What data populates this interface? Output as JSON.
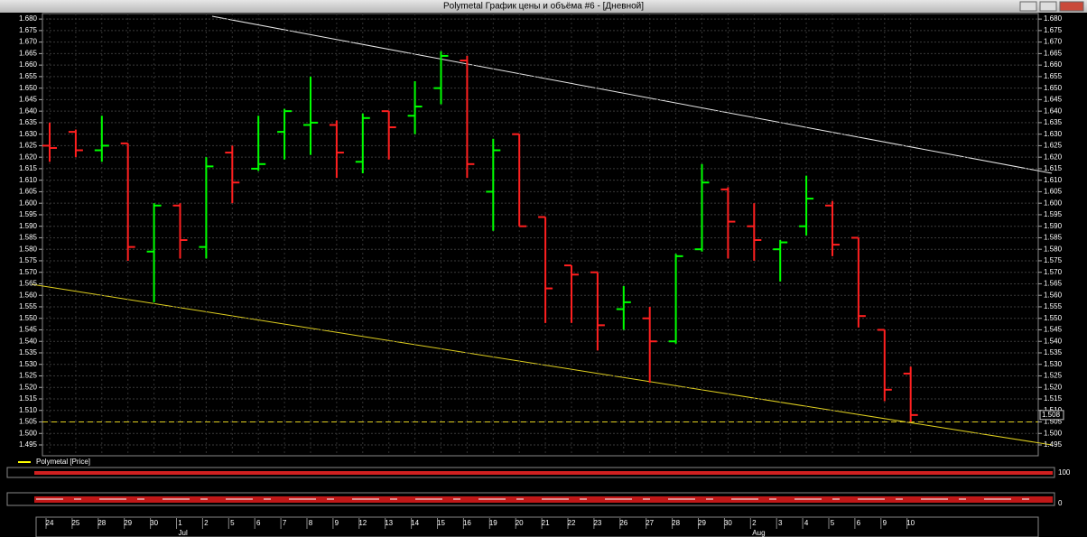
{
  "chart_data": {
    "type": "ohlc",
    "title": "Polymetal График цены и объёма #6 - [Дневной]",
    "legend": "Polymetal [Price]",
    "categories": [
      "24",
      "25",
      "28",
      "29",
      "30",
      "1",
      "2",
      "5",
      "6",
      "7",
      "8",
      "9",
      "12",
      "13",
      "14",
      "15",
      "16",
      "19",
      "20",
      "21",
      "22",
      "23",
      "26",
      "27",
      "28",
      "29",
      "30",
      "2",
      "3",
      "4",
      "5",
      "6",
      "9",
      "10"
    ],
    "month_categories": [
      null,
      null,
      null,
      null,
      null,
      "Jul",
      null,
      null,
      null,
      null,
      null,
      null,
      null,
      null,
      null,
      null,
      null,
      null,
      null,
      null,
      null,
      null,
      null,
      null,
      null,
      null,
      null,
      "Aug",
      null,
      null,
      null,
      null,
      null,
      null
    ],
    "open": [
      1.625,
      1.631,
      1.623,
      1.626,
      1.579,
      1.599,
      1.581,
      1.622,
      1.615,
      1.631,
      1.634,
      1.634,
      1.618,
      1.64,
      1.638,
      1.65,
      1.662,
      1.605,
      1.63,
      1.594,
      1.573,
      1.57,
      1.554,
      1.55,
      1.54,
      1.58,
      1.606,
      1.59,
      1.58,
      1.59,
      1.599,
      1.585,
      1.545,
      1.526
    ],
    "high": [
      1.635,
      1.632,
      1.638,
      1.626,
      1.6,
      1.6,
      1.62,
      1.625,
      1.638,
      1.641,
      1.655,
      1.636,
      1.639,
      1.64,
      1.653,
      1.666,
      1.664,
      1.628,
      1.63,
      1.594,
      1.573,
      1.57,
      1.564,
      1.555,
      1.578,
      1.617,
      1.607,
      1.6,
      1.584,
      1.612,
      1.601,
      1.585,
      1.545,
      1.529
    ],
    "low": [
      1.618,
      1.62,
      1.618,
      1.575,
      1.557,
      1.576,
      1.576,
      1.6,
      1.614,
      1.619,
      1.621,
      1.611,
      1.613,
      1.619,
      1.63,
      1.643,
      1.611,
      1.588,
      1.59,
      1.548,
      1.548,
      1.536,
      1.545,
      1.522,
      1.539,
      1.579,
      1.576,
      1.575,
      1.566,
      1.586,
      1.577,
      1.546,
      1.514,
      1.505
    ],
    "close": [
      1.624,
      1.623,
      1.625,
      1.581,
      1.599,
      1.584,
      1.616,
      1.609,
      1.617,
      1.64,
      1.635,
      1.622,
      1.637,
      1.633,
      1.642,
      1.664,
      1.617,
      1.623,
      1.59,
      1.563,
      1.569,
      1.547,
      1.557,
      1.54,
      1.577,
      1.609,
      1.592,
      1.584,
      1.583,
      1.602,
      1.582,
      1.551,
      1.519,
      1.508
    ],
    "up_color": "#00ff00",
    "down_color": "#ff2020",
    "last_price": 1.508,
    "hlines": [
      1.505
    ],
    "ylim": [
      1.4903,
      1.6824
    ],
    "yticks": [
      {
        "value": 1.68,
        "label": "1.680"
      },
      1.675,
      {
        "value": 1.67,
        "label": "1.670"
      },
      1.665,
      {
        "value": 1.66,
        "label": "1.660"
      },
      1.655,
      {
        "value": 1.65,
        "label": "1.650"
      },
      1.645,
      {
        "value": 1.64,
        "label": "1.640"
      },
      1.635,
      {
        "value": 1.63,
        "label": "1.630"
      },
      1.625,
      {
        "value": 1.62,
        "label": "1.620"
      },
      1.615,
      {
        "value": 1.61,
        "label": "1.610"
      },
      1.605,
      {
        "value": 1.6,
        "label": "1.600"
      },
      1.595,
      {
        "value": 1.59,
        "label": "1.590"
      },
      1.585,
      {
        "value": 1.58,
        "label": "1.580"
      },
      1.575,
      {
        "value": 1.57,
        "label": "1.570"
      },
      1.565,
      {
        "value": 1.56,
        "label": "1.560"
      },
      1.555,
      {
        "value": 1.55,
        "label": "1.550"
      },
      1.545,
      {
        "value": 1.54,
        "label": "1.540"
      },
      1.535,
      {
        "value": 1.53,
        "label": "1.530"
      },
      1.525,
      {
        "value": 1.52,
        "label": "1.520"
      },
      1.515,
      {
        "value": 1.51,
        "label": "1.510"
      },
      1.505,
      {
        "value": 1.5,
        "label": "1.500"
      },
      1.495
    ],
    "volume_ticks": [
      100,
      0
    ]
  }
}
